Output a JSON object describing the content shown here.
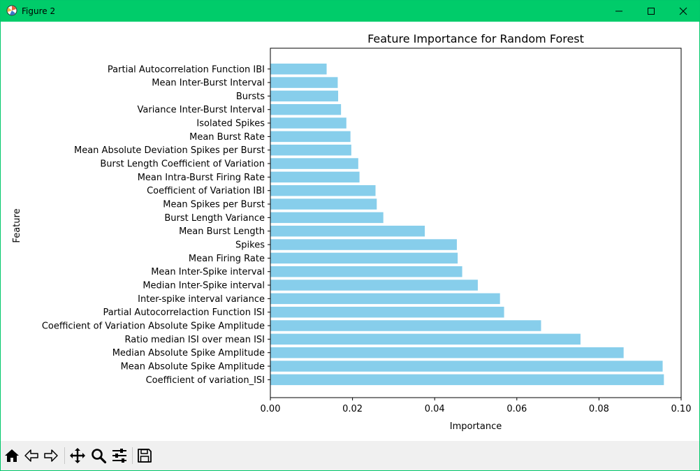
{
  "window": {
    "title": "Figure 2",
    "titlebar_color": "#00cc6a",
    "controls": [
      "minimize-icon",
      "maximize-icon",
      "close-icon"
    ]
  },
  "toolbar": {
    "tools": [
      {
        "name": "home-icon"
      },
      {
        "name": "back-arrow-icon"
      },
      {
        "name": "forward-arrow-icon"
      },
      {
        "name": "pan-icon"
      },
      {
        "name": "zoom-icon"
      },
      {
        "name": "configure-subplots-icon"
      },
      {
        "name": "save-icon"
      }
    ]
  },
  "chart_data": {
    "type": "bar",
    "orientation": "horizontal",
    "title": "Feature Importance for Random Forest",
    "xlabel": "Importance",
    "ylabel": "Feature",
    "xlim": [
      0,
      0.1
    ],
    "xticks": [
      "0.00",
      "0.02",
      "0.04",
      "0.06",
      "0.08",
      "0.10"
    ],
    "bar_color": "#87ceeb",
    "grid": false,
    "categories": [
      "Partial Autocorrelation Function IBI",
      "Mean Inter-Burst Interval",
      "Bursts",
      "Variance Inter-Burst Interval",
      "Isolated Spikes",
      "Mean Burst Rate",
      "Mean Absolute Deviation Spikes per Burst",
      "Burst Length Coefficient of Variation",
      "Mean Intra-Burst Firing Rate",
      "Coefficient of Variation IBI",
      "Mean Spikes per Burst",
      "Burst Length Variance",
      "Mean Burst Length",
      "Spikes",
      "Mean Firing Rate",
      "Mean Inter-Spike interval",
      "Median Inter-Spike interval",
      "Inter-spike interval variance",
      "Partial Autocorrelaction Function ISI",
      "Coefficient of Variation Absolute Spike Amplitude",
      "Ratio median ISI over mean ISI",
      "Median Absolute Spike Amplitude",
      "Mean Absolute Spike Amplitude",
      "Coefficient of variation_ISI"
    ],
    "values": [
      0.0137,
      0.0164,
      0.0165,
      0.0172,
      0.0185,
      0.0195,
      0.0197,
      0.0214,
      0.0217,
      0.0256,
      0.0259,
      0.0275,
      0.0376,
      0.0454,
      0.0456,
      0.0467,
      0.0505,
      0.0559,
      0.0569,
      0.0659,
      0.0755,
      0.086,
      0.0955,
      0.0958
    ]
  }
}
